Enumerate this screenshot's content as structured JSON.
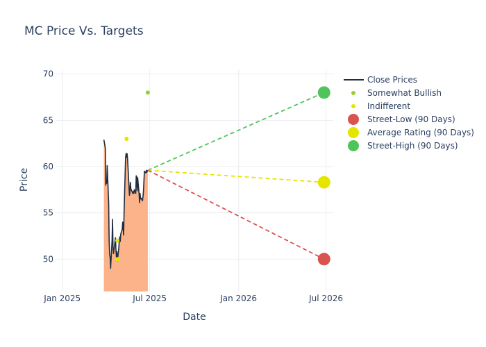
{
  "chart_data": {
    "type": "line",
    "title": "MC Price Vs. Targets",
    "xlabel": "Date",
    "ylabel": "Price",
    "xlim": [
      "2024-12-18",
      "2026-07-16"
    ],
    "ylim": [
      46.5,
      70.5
    ],
    "x_ticks": [
      {
        "date": "2025-01-01",
        "label": "Jan 2025"
      },
      {
        "date": "2025-07-01",
        "label": "Jul 2025"
      },
      {
        "date": "2026-01-01",
        "label": "Jan 2026"
      },
      {
        "date": "2026-07-01",
        "label": "Jul 2026"
      }
    ],
    "y_ticks": [
      50,
      55,
      60,
      65,
      70
    ],
    "grid": true,
    "legend_position": "right",
    "colors": {
      "close": "#1f2e40",
      "fill": "#fdb38a",
      "bullish": "#9acd32",
      "indifferent": "#e5e500",
      "low": "#d9534f",
      "average": "#e5e500",
      "high": "#4ec45a",
      "grid": "#ebedf2"
    },
    "close_prices": {
      "name": "Close Prices",
      "x": [
        "2025-03-28",
        "2025-03-31",
        "2025-04-01",
        "2025-04-02",
        "2025-04-03",
        "2025-04-04",
        "2025-04-07",
        "2025-04-08",
        "2025-04-09",
        "2025-04-10",
        "2025-04-11",
        "2025-04-14",
        "2025-04-15",
        "2025-04-16",
        "2025-04-17",
        "2025-04-21",
        "2025-04-22",
        "2025-04-23",
        "2025-04-24",
        "2025-04-25",
        "2025-04-28",
        "2025-04-29",
        "2025-04-30",
        "2025-05-01",
        "2025-05-02",
        "2025-05-05",
        "2025-05-06",
        "2025-05-07",
        "2025-05-08",
        "2025-05-09",
        "2025-05-12",
        "2025-05-13",
        "2025-05-14",
        "2025-05-15",
        "2025-05-16",
        "2025-05-19",
        "2025-05-20",
        "2025-05-21",
        "2025-05-22",
        "2025-05-23",
        "2025-05-27",
        "2025-05-28",
        "2025-05-29",
        "2025-05-30",
        "2025-06-02",
        "2025-06-03",
        "2025-06-04",
        "2025-06-05",
        "2025-06-06",
        "2025-06-09",
        "2025-06-10",
        "2025-06-11",
        "2025-06-12",
        "2025-06-13",
        "2025-06-16",
        "2025-06-17",
        "2025-06-18",
        "2025-06-20",
        "2025-06-23",
        "2025-06-24",
        "2025-06-25",
        "2025-06-26",
        "2025-06-27"
      ],
      "y": [
        62.9,
        62.0,
        58.0,
        58.4,
        58.2,
        60.1,
        56.1,
        52.0,
        50.5,
        50.2,
        49.0,
        52.0,
        54.3,
        51.3,
        50.6,
        52.3,
        51.0,
        50.2,
        50.8,
        49.8,
        51.2,
        52.0,
        52.4,
        51.9,
        52.7,
        53.2,
        54.0,
        53.4,
        52.6,
        55.3,
        61.0,
        61.4,
        61.0,
        61.4,
        60.9,
        58.0,
        56.9,
        57.2,
        58.3,
        57.6,
        57.1,
        57.3,
        57.1,
        57.5,
        57.1,
        59.0,
        58.9,
        57.4,
        58.8,
        57.1,
        56.1,
        57.1,
        56.5,
        56.6,
        56.3,
        56.7,
        57.3,
        59.5,
        59.3,
        59.6,
        59.4,
        59.5,
        59.6
      ]
    },
    "ratings": [
      {
        "name": "Somewhat Bullish",
        "points": [
          {
            "x": "2025-06-27",
            "y": 68
          }
        ]
      },
      {
        "name": "Indifferent",
        "points": [
          {
            "x": "2025-05-14",
            "y": 63
          },
          {
            "x": "2025-04-25",
            "y": 52
          },
          {
            "x": "2025-04-25",
            "y": 50
          }
        ]
      }
    ],
    "targets": {
      "start": {
        "x": "2025-06-27",
        "y": 59.6
      },
      "end_x": "2026-06-27",
      "low": {
        "name": "Street-Low (90 Days)",
        "y": 50
      },
      "average": {
        "name": "Average Rating (90 Days)",
        "y": 58.3
      },
      "high": {
        "name": "Street-High (90 Days)",
        "y": 68
      }
    }
  }
}
